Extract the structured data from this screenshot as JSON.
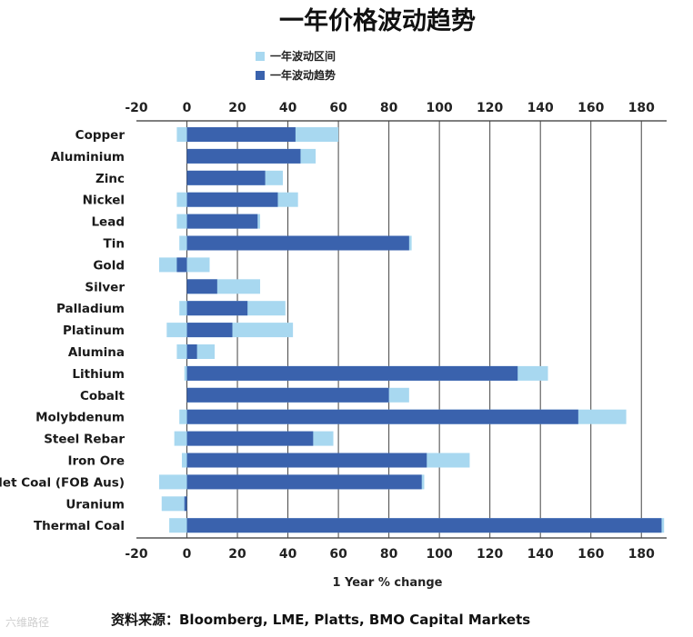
{
  "chart_data": {
    "type": "bar",
    "title": "一年价格波动趋势",
    "xlabel": "1 Year % change",
    "xlim": [
      -20,
      190
    ],
    "xticks": [
      -20,
      0,
      20,
      40,
      60,
      80,
      100,
      120,
      140,
      160,
      180
    ],
    "grid": true,
    "legend_position": "top-left",
    "colors": {
      "range": "#a8d8f0",
      "trend": "#3a62ad"
    },
    "categories": [
      "Copper",
      "Aluminium",
      "Zinc",
      "Nickel",
      "Lead",
      "Tin",
      "Gold",
      "Silver",
      "Palladium",
      "Platinum",
      "Alumina",
      "Lithium",
      "Cobalt",
      "Molybdenum",
      "Steel Rebar",
      "Iron Ore",
      "Met Coal (FOB Aus)",
      "Uranium",
      "Thermal Coal"
    ],
    "series": [
      {
        "name": "一年波动区间",
        "kind": "range",
        "values": [
          [
            -4,
            60
          ],
          [
            0,
            51
          ],
          [
            0,
            38
          ],
          [
            -4,
            44
          ],
          [
            -4,
            29
          ],
          [
            -3,
            89
          ],
          [
            -11,
            9
          ],
          [
            0,
            29
          ],
          [
            -3,
            39
          ],
          [
            -8,
            42
          ],
          [
            -4,
            11
          ],
          [
            -1,
            143
          ],
          [
            0,
            88
          ],
          [
            -3,
            174
          ],
          [
            -5,
            58
          ],
          [
            -2,
            112
          ],
          [
            -11,
            94
          ],
          [
            -10,
            0
          ],
          [
            -7,
            189
          ]
        ]
      },
      {
        "name": "一年波动趋势",
        "kind": "trend",
        "values": [
          43,
          45,
          31,
          36,
          28,
          88,
          -4,
          12,
          24,
          18,
          4,
          131,
          80,
          155,
          50,
          95,
          93,
          -1,
          188
        ]
      }
    ]
  },
  "source": "资料来源：Bloomberg, LME, Platts, BMO Capital Markets",
  "watermark": "六维路径"
}
